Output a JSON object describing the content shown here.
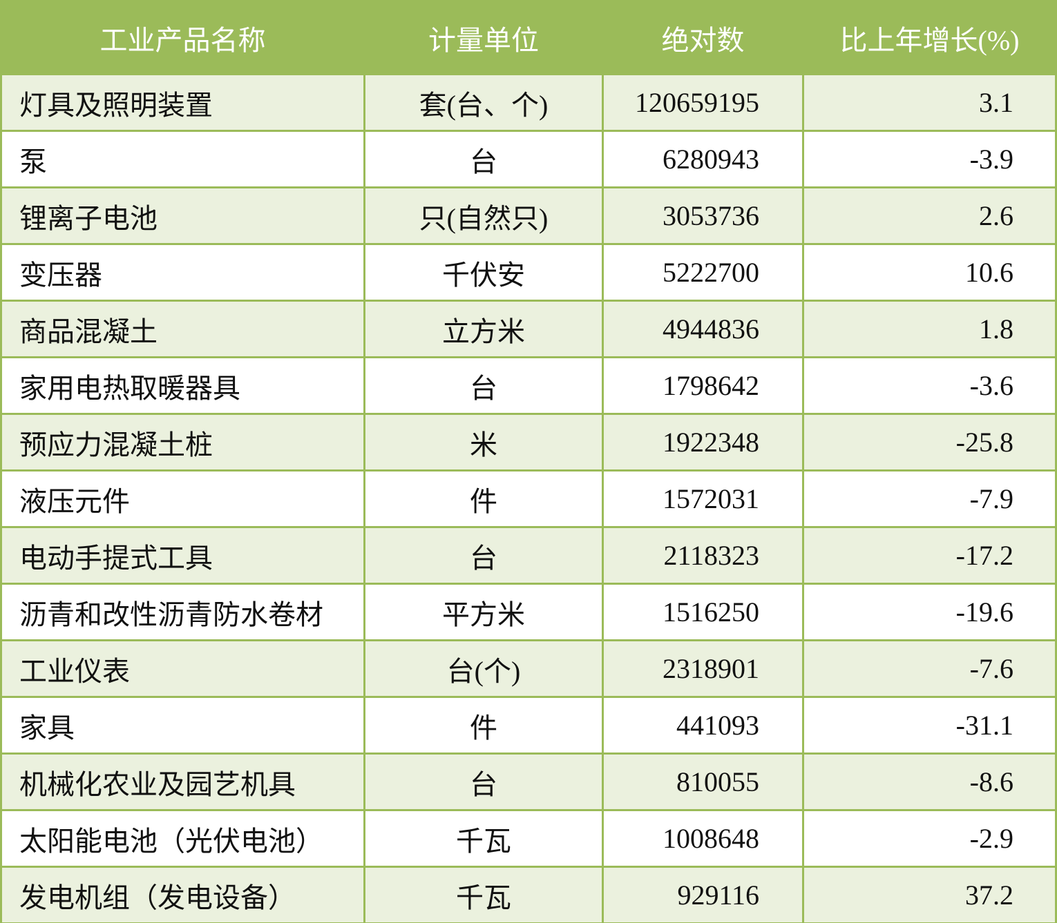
{
  "table": {
    "header": [
      "工业产品名称",
      "计量单位",
      "绝对数",
      "比上年增长(%)"
    ],
    "rows": [
      [
        "灯具及照明装置",
        "套(台、个)",
        "120659195",
        "3.1"
      ],
      [
        "泵",
        "台",
        "6280943",
        "-3.9"
      ],
      [
        "锂离子电池",
        "只(自然只)",
        "3053736",
        "2.6"
      ],
      [
        "变压器",
        "千伏安",
        "5222700",
        "10.6"
      ],
      [
        "商品混凝土",
        "立方米",
        "4944836",
        "1.8"
      ],
      [
        "家用电热取暖器具",
        "台",
        "1798642",
        "-3.6"
      ],
      [
        "预应力混凝土桩",
        "米",
        "1922348",
        "-25.8"
      ],
      [
        "液压元件",
        "件",
        "1572031",
        "-7.9"
      ],
      [
        "电动手提式工具",
        "台",
        "2118323",
        "-17.2"
      ],
      [
        "沥青和改性沥青防水卷材",
        "平方米",
        "1516250",
        "-19.6"
      ],
      [
        "工业仪表",
        "台(个)",
        "2318901",
        "-7.6"
      ],
      [
        "家具",
        "件",
        "441093",
        "-31.1"
      ],
      [
        "机械化农业及园艺机具",
        "台",
        "810055",
        "-8.6"
      ],
      [
        "太阳能电池（光伏电池）",
        "千瓦",
        "1008648",
        "-2.9"
      ],
      [
        "发电机组（发电设备）",
        "千瓦",
        "929116",
        "37.2"
      ]
    ]
  }
}
